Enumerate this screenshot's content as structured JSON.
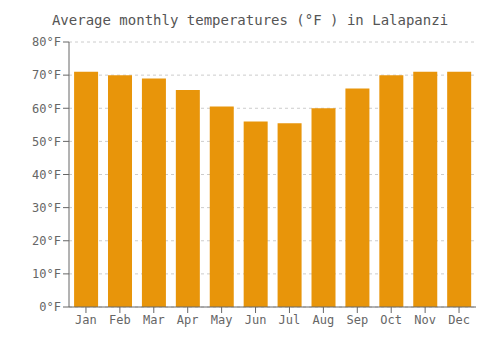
{
  "chart_data": {
    "type": "bar",
    "title": "Average monthly temperatures (°F ) in Lalapanzi",
    "categories": [
      "Jan",
      "Feb",
      "Mar",
      "Apr",
      "May",
      "Jun",
      "Jul",
      "Aug",
      "Sep",
      "Oct",
      "Nov",
      "Dec"
    ],
    "values": [
      71,
      70,
      69,
      65.5,
      60.5,
      56,
      55.5,
      60,
      66,
      70,
      71,
      71
    ],
    "color": "#E8950A",
    "ylim": [
      0,
      80
    ],
    "yticks": [
      {
        "value": 0,
        "label": "0°F"
      },
      {
        "value": 10,
        "label": "10°F"
      },
      {
        "value": 20,
        "label": "20°F"
      },
      {
        "value": 30,
        "label": "30°F"
      },
      {
        "value": 40,
        "label": "40°F"
      },
      {
        "value": 50,
        "label": "50°F"
      },
      {
        "value": 60,
        "label": "60°F"
      },
      {
        "value": 70,
        "label": "70°F"
      },
      {
        "value": 80,
        "label": "80°F"
      }
    ],
    "grid": true
  }
}
